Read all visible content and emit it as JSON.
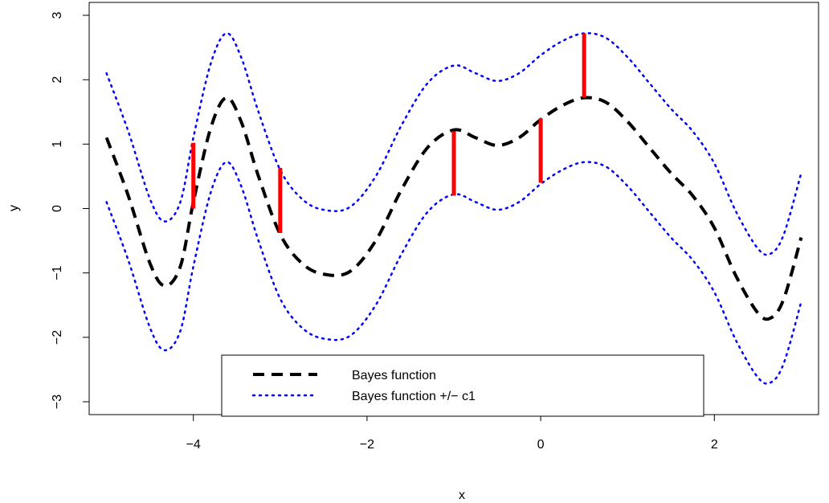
{
  "chart_data": {
    "type": "line",
    "title": "",
    "xlabel": "x",
    "ylabel": "y",
    "xlim": [
      -5.2,
      3.2
    ],
    "ylim": [
      -3.2,
      3.2
    ],
    "x_ticks": [
      -4,
      -2,
      0,
      2
    ],
    "y_ticks": [
      -3,
      -2,
      -1,
      0,
      1,
      2,
      3
    ],
    "x_tick_labels": [
      "−4",
      "−2",
      "0",
      "2"
    ],
    "y_tick_labels": [
      "−3",
      "−2",
      "−1",
      "0",
      "1",
      "2",
      "3"
    ],
    "grid": false,
    "legend_position": "bottom-center",
    "series": [
      {
        "name": "Bayes function",
        "style": "dashed",
        "color": "#000000",
        "x": [
          -5.0,
          -4.75,
          -4.5,
          -4.33,
          -4.15,
          -4.0,
          -3.8,
          -3.62,
          -3.45,
          -3.25,
          -3.0,
          -2.75,
          -2.5,
          -2.2,
          -1.9,
          -1.6,
          -1.3,
          -1.0,
          -0.75,
          -0.5,
          -0.25,
          0.0,
          0.25,
          0.5,
          0.75,
          1.0,
          1.25,
          1.5,
          1.75,
          2.0,
          2.25,
          2.5,
          2.65,
          2.8,
          3.0
        ],
        "y": [
          1.1,
          0.2,
          -0.85,
          -1.2,
          -0.9,
          0.1,
          1.25,
          1.72,
          1.35,
          0.5,
          -0.4,
          -0.85,
          -1.02,
          -0.98,
          -0.5,
          0.3,
          0.95,
          1.22,
          1.1,
          0.98,
          1.1,
          1.38,
          1.6,
          1.72,
          1.65,
          1.35,
          0.95,
          0.55,
          0.2,
          -0.3,
          -1.05,
          -1.62,
          -1.7,
          -1.4,
          -0.45
        ]
      },
      {
        "name": "Bayes function +/− c1",
        "style": "dotted",
        "color": "#0000ff",
        "x": [
          -5.0,
          -4.75,
          -4.5,
          -4.33,
          -4.15,
          -4.0,
          -3.8,
          -3.62,
          -3.45,
          -3.25,
          -3.0,
          -2.75,
          -2.5,
          -2.2,
          -1.9,
          -1.6,
          -1.3,
          -1.0,
          -0.75,
          -0.5,
          -0.25,
          0.0,
          0.25,
          0.5,
          0.75,
          1.0,
          1.25,
          1.5,
          1.75,
          2.0,
          2.25,
          2.5,
          2.65,
          2.8,
          3.0
        ],
        "y": [
          2.1,
          1.2,
          0.15,
          -0.2,
          0.1,
          1.1,
          2.25,
          2.72,
          2.35,
          1.5,
          0.6,
          0.15,
          -0.02,
          0.02,
          0.5,
          1.3,
          1.95,
          2.22,
          2.1,
          1.98,
          2.1,
          2.38,
          2.6,
          2.72,
          2.65,
          2.35,
          1.95,
          1.55,
          1.2,
          0.7,
          -0.05,
          -0.62,
          -0.7,
          -0.4,
          0.55
        ]
      },
      {
        "name": "",
        "style": "dotted",
        "color": "#0000ff",
        "x": [
          -5.0,
          -4.75,
          -4.5,
          -4.33,
          -4.15,
          -4.0,
          -3.8,
          -3.62,
          -3.45,
          -3.25,
          -3.0,
          -2.75,
          -2.5,
          -2.2,
          -1.9,
          -1.6,
          -1.3,
          -1.0,
          -0.75,
          -0.5,
          -0.25,
          0.0,
          0.25,
          0.5,
          0.75,
          1.0,
          1.25,
          1.5,
          1.75,
          2.0,
          2.25,
          2.5,
          2.65,
          2.8,
          3.0
        ],
        "y": [
          0.1,
          -0.8,
          -1.85,
          -2.2,
          -1.9,
          -0.9,
          0.25,
          0.72,
          0.35,
          -0.5,
          -1.4,
          -1.85,
          -2.02,
          -1.98,
          -1.5,
          -0.7,
          -0.05,
          0.22,
          0.1,
          -0.02,
          0.1,
          0.38,
          0.6,
          0.72,
          0.65,
          0.35,
          -0.05,
          -0.45,
          -0.8,
          -1.3,
          -2.05,
          -2.62,
          -2.7,
          -2.4,
          -1.45
        ]
      }
    ],
    "segments": {
      "color": "#ff0000",
      "items": [
        {
          "x": -4.0,
          "y0": 0.0,
          "y1": 1.02
        },
        {
          "x": -3.0,
          "y0": -0.38,
          "y1": 0.63
        },
        {
          "x": -1.0,
          "y0": 0.2,
          "y1": 1.2
        },
        {
          "x": 0.0,
          "y0": 0.4,
          "y1": 1.4
        },
        {
          "x": 0.5,
          "y0": 1.72,
          "y1": 2.72
        }
      ]
    }
  },
  "legend": {
    "entries": [
      {
        "label": "Bayes function",
        "style": "dashed",
        "color": "#000000"
      },
      {
        "label": "Bayes function +/− c1",
        "style": "dotted",
        "color": "#0000ff"
      }
    ]
  }
}
